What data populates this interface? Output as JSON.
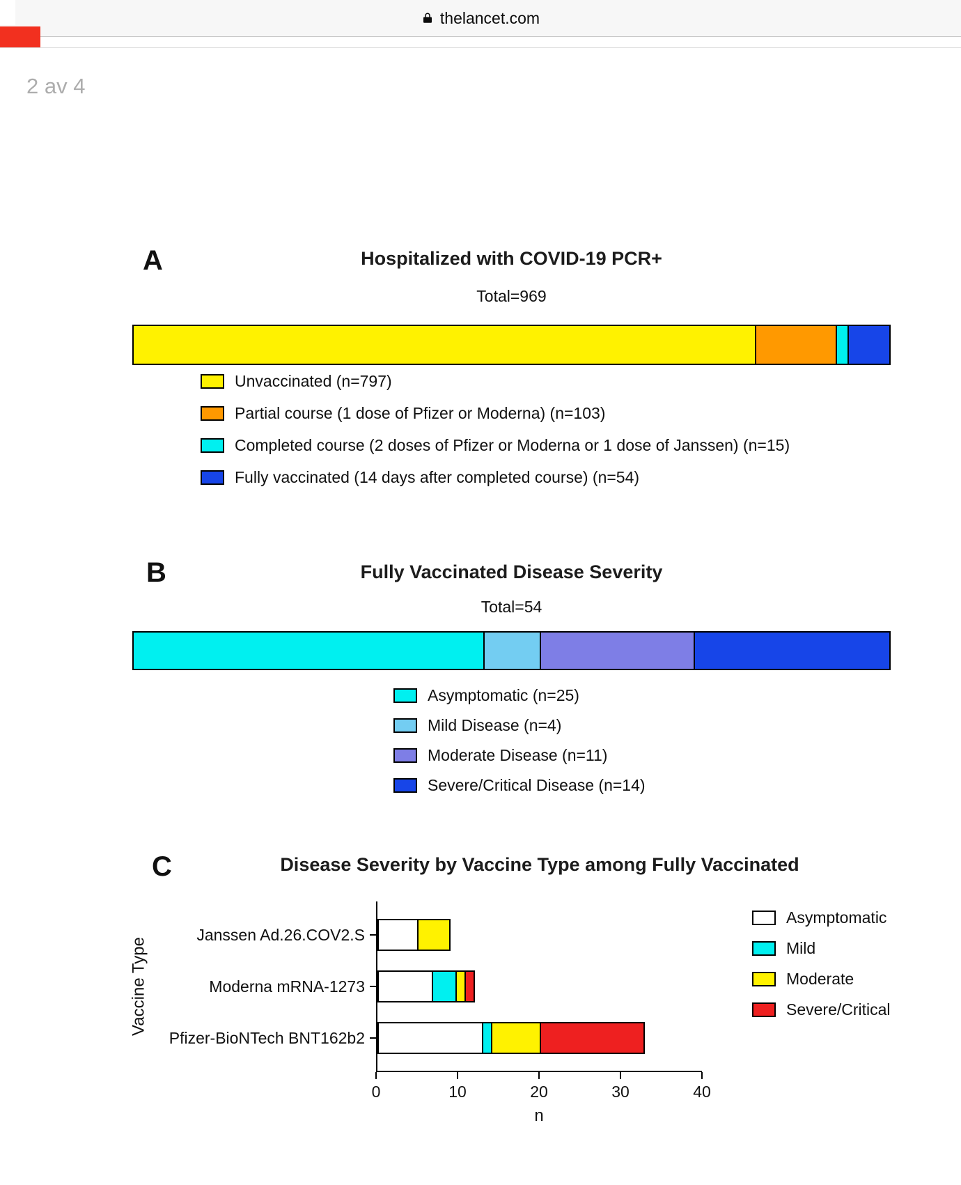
{
  "browser": {
    "url_text": "thelancet.com",
    "page_indicator": "2 av 4"
  },
  "figure": {
    "panel_a_letter": "A",
    "panel_b_letter": "B",
    "panel_c_letter": "C"
  },
  "chart_data": [
    {
      "type": "bar",
      "panel": "A",
      "variant": "single-stacked-horizontal",
      "title": "Hospitalized with COVID-19 PCR+",
      "subtitle": "Total=969",
      "total": 969,
      "grid": false,
      "legend_position": "below-left",
      "segments": [
        {
          "name": "Unvaccinated",
          "label": "Unvaccinated (n=797)",
          "n": 797,
          "color": "#FFF200"
        },
        {
          "name": "Partial course",
          "label": "Partial course (1 dose of Pfizer or Moderna) (n=103)",
          "n": 103,
          "color": "#FF9900"
        },
        {
          "name": "Completed course",
          "label": "Completed course (2 doses of Pfizer or Moderna or 1 dose of Janssen) (n=15)",
          "n": 15,
          "color": "#00F0F0"
        },
        {
          "name": "Fully vaccinated",
          "label": "Fully vaccinated (14 days after completed course) (n=54)",
          "n": 54,
          "color": "#1745E8"
        }
      ]
    },
    {
      "type": "bar",
      "panel": "B",
      "variant": "single-stacked-horizontal",
      "title": "Fully Vaccinated Disease Severity",
      "subtitle": "Total=54",
      "total": 54,
      "grid": false,
      "legend_position": "below-center",
      "segments": [
        {
          "name": "Asymptomatic",
          "label": "Asymptomatic (n=25)",
          "n": 25,
          "color": "#00F0F0"
        },
        {
          "name": "Mild Disease",
          "label": "Mild Disease (n=4)",
          "n": 4,
          "color": "#73CDF2"
        },
        {
          "name": "Moderate Disease",
          "label": "Moderate Disease (n=11)",
          "n": 11,
          "color": "#7E7EE6"
        },
        {
          "name": "Severe/Critical Disease",
          "label": "Severe/Critical Disease (n=14)",
          "n": 14,
          "color": "#1745E8"
        }
      ]
    },
    {
      "type": "bar",
      "panel": "C",
      "variant": "stacked-horizontal",
      "title": "Disease Severity by Vaccine Type among Fully Vaccinated",
      "xlabel": "n",
      "ylabel": "Vaccine Type",
      "xlim": [
        0,
        40
      ],
      "x_ticks": [
        0,
        10,
        20,
        30,
        40
      ],
      "grid": false,
      "legend_position": "right",
      "categories": [
        "Janssen Ad.26.COV2.S",
        "Moderna mRNA-1273",
        "Pfizer-BioNTech BNT162b2"
      ],
      "series": [
        {
          "name": "Asymptomatic",
          "label": "Asymptomatic",
          "color": "#FFFFFF",
          "values": [
            5,
            7,
            13
          ]
        },
        {
          "name": "Mild",
          "label": "Mild",
          "color": "#00F0F0",
          "values": [
            0,
            3,
            1
          ]
        },
        {
          "name": "Moderate",
          "label": "Moderate",
          "color": "#FFF200",
          "values": [
            4,
            1,
            6
          ]
        },
        {
          "name": "Severe/Critical",
          "label": "Severe/Critical",
          "color": "#EE2020",
          "values": [
            0,
            1,
            13
          ]
        }
      ]
    }
  ]
}
